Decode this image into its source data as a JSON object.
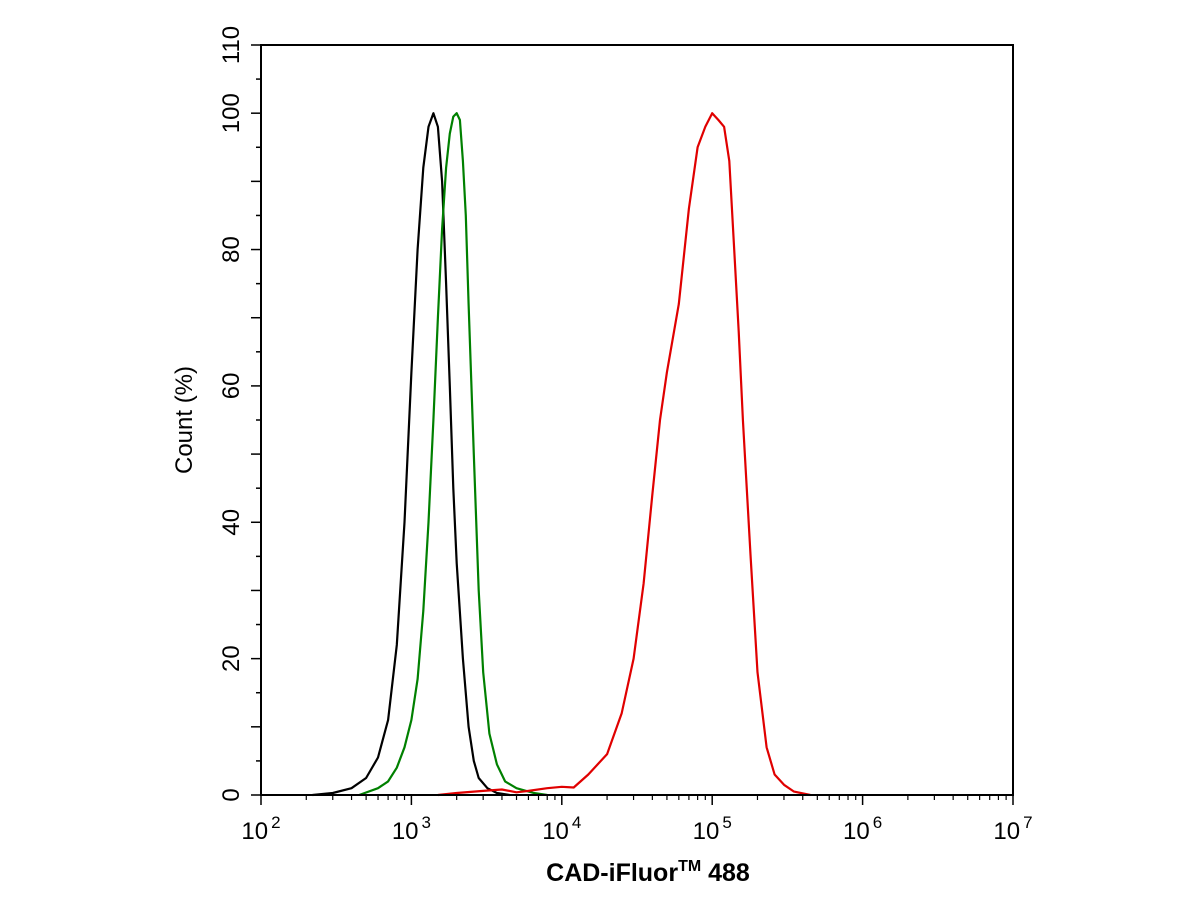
{
  "chart_data": {
    "type": "line",
    "title": "",
    "xlabel": "CAD-iFluor",
    "xlabel_superscript": "TM",
    "xlabel_suffix": " 488",
    "ylabel": "Count  (%)",
    "x_scale": "log",
    "xlim": [
      100,
      10000000
    ],
    "ylim": [
      0,
      110
    ],
    "grid": false,
    "legend": "none",
    "x_ticks": [
      {
        "base": "10",
        "exp": "2",
        "value": 100
      },
      {
        "base": "10",
        "exp": "3",
        "value": 1000
      },
      {
        "base": "10",
        "exp": "4",
        "value": 10000
      },
      {
        "base": "10",
        "exp": "5",
        "value": 100000
      },
      {
        "base": "10",
        "exp": "6",
        "value": 1000000
      },
      {
        "base": "10",
        "exp": "7",
        "value": 10000000
      }
    ],
    "y_ticks": [
      0,
      20,
      40,
      60,
      80,
      100,
      110
    ],
    "series": [
      {
        "color": "#000000",
        "x": [
          220,
          300,
          400,
          500,
          600,
          700,
          800,
          900,
          1000,
          1100,
          1200,
          1300,
          1400,
          1500,
          1600,
          1700,
          1800,
          1900,
          2000,
          2200,
          2400,
          2600,
          2800,
          3200,
          3700,
          4500
        ],
        "y": [
          0,
          0.3,
          1,
          2.5,
          5.5,
          11,
          22,
          40,
          62,
          80,
          92,
          98,
          100,
          98,
          90,
          75,
          60,
          45,
          34,
          20,
          10,
          5,
          2.5,
          1,
          0.3,
          0
        ]
      },
      {
        "color": "#008000",
        "x": [
          450,
          600,
          700,
          800,
          900,
          1000,
          1100,
          1200,
          1300,
          1400,
          1500,
          1600,
          1700,
          1800,
          1900,
          2000,
          2100,
          2200,
          2300,
          2400,
          2600,
          2800,
          3000,
          3300,
          3700,
          4200,
          5000,
          6500,
          8000
        ],
        "y": [
          0,
          1,
          2,
          4,
          7,
          11,
          17,
          27,
          40,
          55,
          70,
          83,
          92,
          97,
          99.5,
          100,
          99,
          93,
          85,
          72,
          50,
          30,
          18,
          9,
          4.5,
          2,
          1,
          0.3,
          0
        ]
      },
      {
        "color": "#e00000",
        "x": [
          1500,
          2000,
          3000,
          4000,
          5000,
          6000,
          8000,
          10000,
          12000,
          15000,
          20000,
          25000,
          30000,
          35000,
          40000,
          45000,
          50000,
          60000,
          70000,
          80000,
          90000,
          100000,
          110000,
          120000,
          130000,
          140000,
          150000,
          160000,
          180000,
          200000,
          230000,
          260000,
          300000,
          350000,
          450000
        ],
        "y": [
          0,
          0.3,
          0.6,
          0.8,
          0.4,
          0.6,
          1,
          1.2,
          1.1,
          3,
          6,
          12,
          20,
          31,
          44,
          55,
          62,
          72,
          86,
          95,
          98,
          100,
          99,
          98,
          93,
          80,
          68,
          55,
          35,
          18,
          7,
          3,
          1.5,
          0.5,
          0
        ]
      }
    ]
  }
}
